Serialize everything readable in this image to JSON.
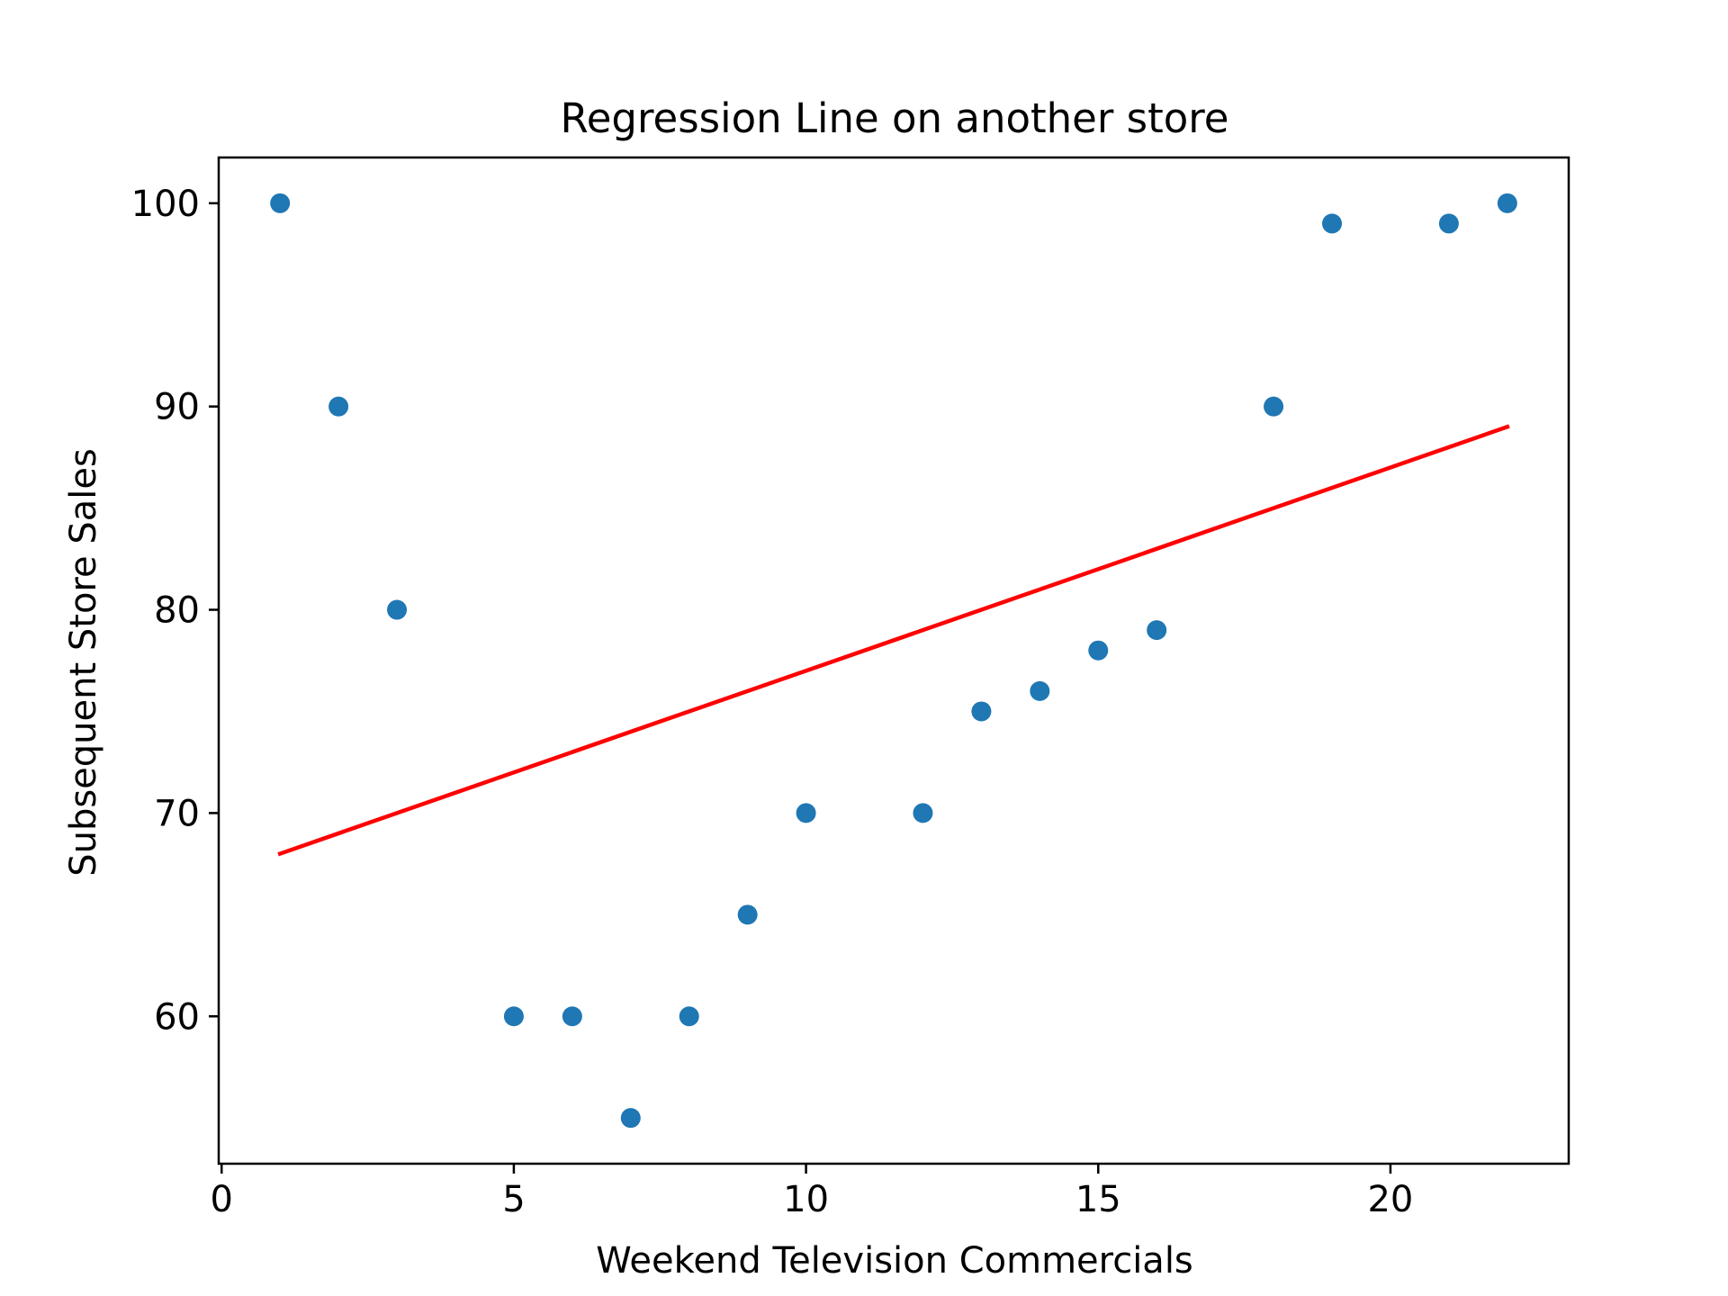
{
  "chart_data": {
    "type": "scatter",
    "title": "Regression Line on another store",
    "xlabel": "Weekend Television Commercials",
    "ylabel": "Subsequent Store Sales",
    "xlim": [
      -0.05,
      23.05
    ],
    "ylim": [
      52.75,
      102.25
    ],
    "xticks": [
      0,
      5,
      10,
      15,
      20
    ],
    "yticks": [
      60,
      70,
      80,
      90,
      100
    ],
    "grid": false,
    "series": [
      {
        "kind": "scatter",
        "color": "#1f77b4",
        "points": [
          {
            "x": 1,
            "y": 100
          },
          {
            "x": 2,
            "y": 90
          },
          {
            "x": 3,
            "y": 80
          },
          {
            "x": 5,
            "y": 60
          },
          {
            "x": 6,
            "y": 60
          },
          {
            "x": 7,
            "y": 55
          },
          {
            "x": 8,
            "y": 60
          },
          {
            "x": 9,
            "y": 65
          },
          {
            "x": 10,
            "y": 70
          },
          {
            "x": 12,
            "y": 70
          },
          {
            "x": 13,
            "y": 75
          },
          {
            "x": 14,
            "y": 76
          },
          {
            "x": 15,
            "y": 78
          },
          {
            "x": 16,
            "y": 79
          },
          {
            "x": 18,
            "y": 90
          },
          {
            "x": 19,
            "y": 99
          },
          {
            "x": 21,
            "y": 99
          },
          {
            "x": 22,
            "y": 100
          }
        ]
      },
      {
        "kind": "line",
        "color": "#ff0000",
        "points": [
          {
            "x": 1,
            "y": 68
          },
          {
            "x": 22,
            "y": 89
          }
        ]
      }
    ]
  }
}
